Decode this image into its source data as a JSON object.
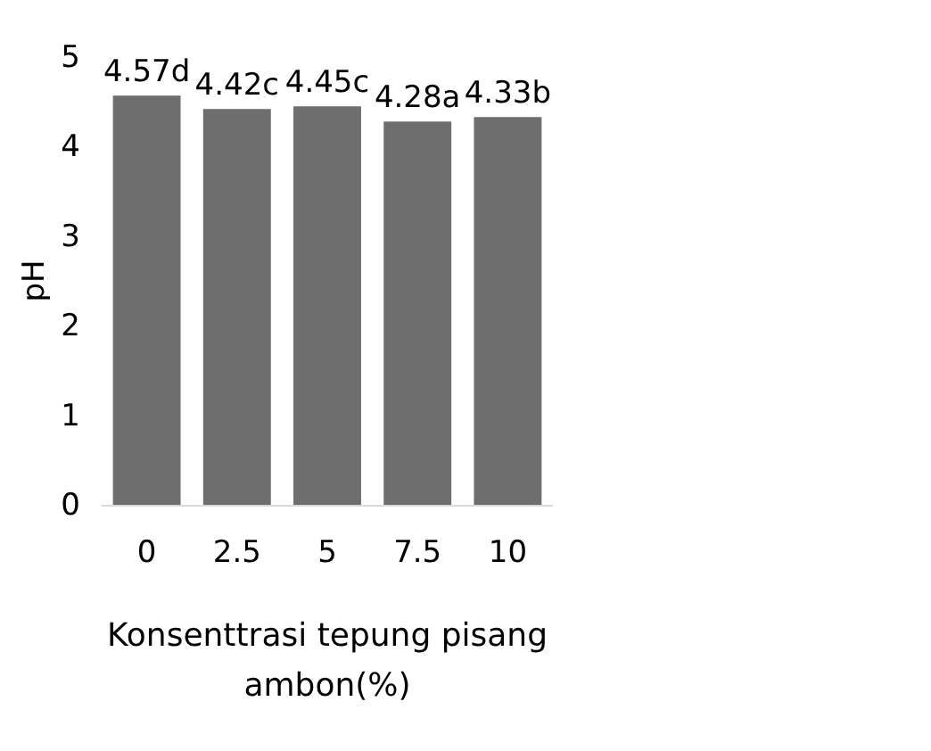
{
  "chart_data": {
    "type": "bar",
    "xlabel": "Konsenttrasi tepung pisang ambon(%)",
    "ylabel": "pH",
    "categories": [
      "0",
      "2.5",
      "5",
      "7.5",
      "10"
    ],
    "values": [
      4.57,
      4.42,
      4.45,
      4.28,
      4.33
    ],
    "value_labels": [
      "4.57d",
      "4.42c",
      "4.45c",
      "4.28a",
      "4.33b"
    ],
    "color": "#6e6e6e",
    "ylim": [
      0,
      5
    ],
    "yticks": [
      0,
      1,
      2,
      3,
      4,
      5
    ],
    "grid": false
  }
}
